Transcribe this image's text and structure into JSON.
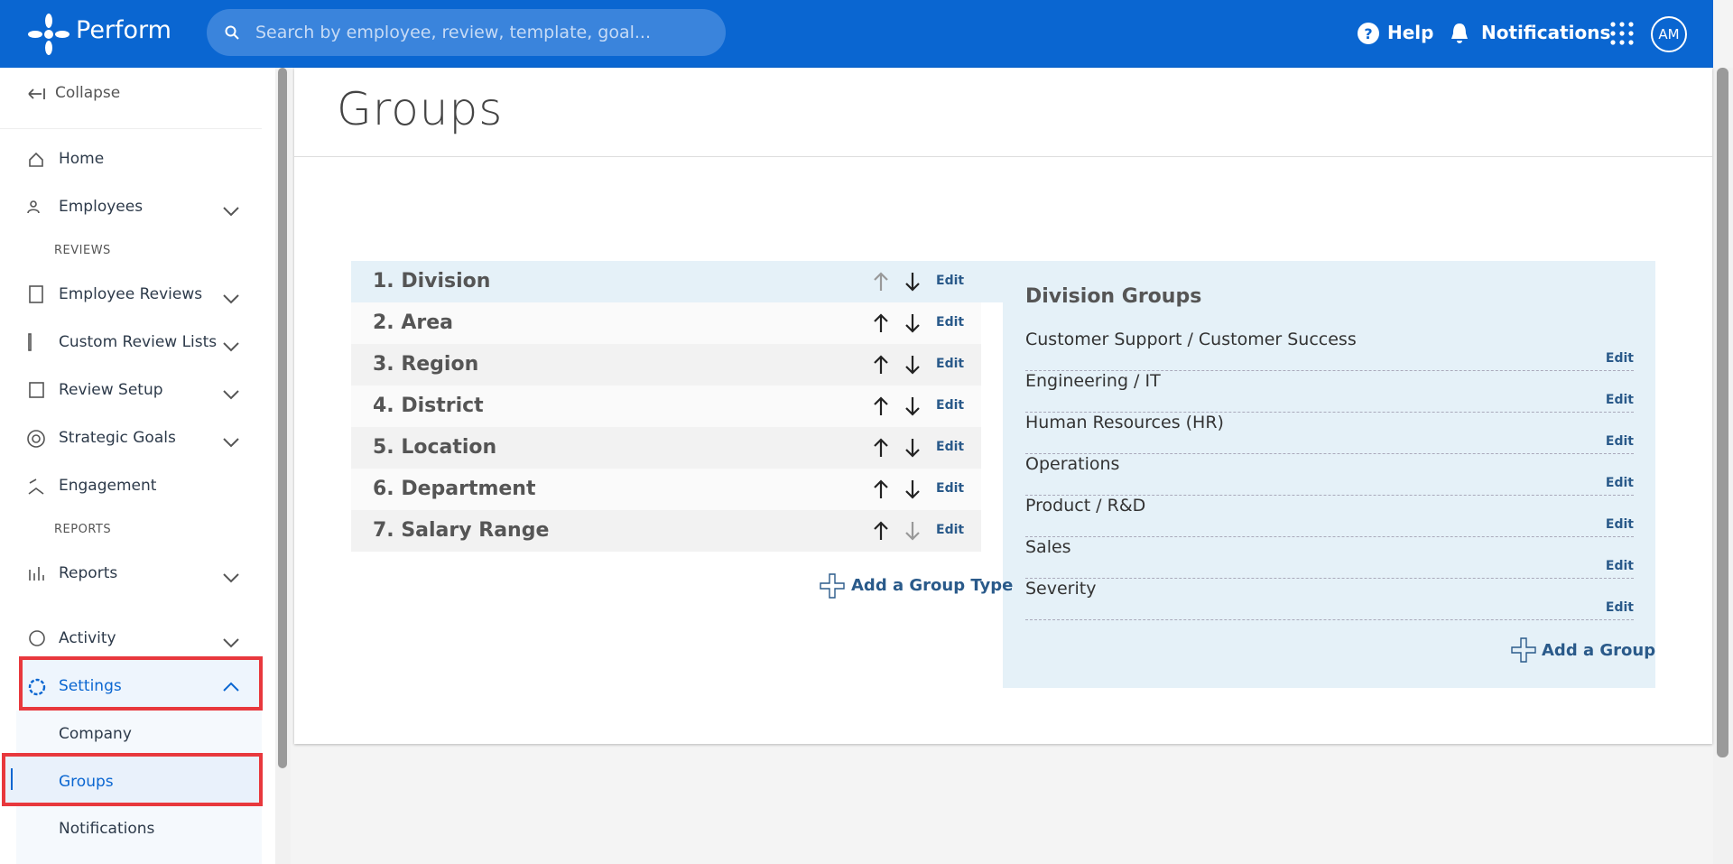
{
  "header": {
    "logo": "Perform",
    "search_placeholder": "Search by employee, review, template, goal...",
    "help": "Help",
    "notifications": "Notifications",
    "avatar": "AM"
  },
  "sidebar": {
    "collapse": "Collapse",
    "home": "Home",
    "employees": "Employees",
    "reviews_heading": "REVIEWS",
    "employee_reviews": "Employee Reviews",
    "custom_review_lists": "Custom Review Lists",
    "review_setup": "Review Setup",
    "strategic_goals": "Strategic Goals",
    "engagement": "Engagement",
    "reports_heading": "REPORTS",
    "reports": "Reports",
    "activity": "Activity",
    "settings": "Settings",
    "company": "Company",
    "groups": "Groups",
    "notifications": "Notifications"
  },
  "main": {
    "title": "Groups",
    "group_types": [
      "1. Division",
      "2. Area",
      "3. Region",
      "4. District",
      "5. Location",
      "6. Department",
      "7. Salary Range"
    ],
    "edit": "Edit",
    "add_group_type": "Add a Group Type",
    "panel_title": "Division Groups",
    "groups": [
      "Customer Support / Customer Success",
      "Engineering / IT",
      "Human Resources (HR)",
      "Operations",
      "Product / R&D",
      "Sales",
      "Severity"
    ],
    "add_group": "Add a Group"
  }
}
